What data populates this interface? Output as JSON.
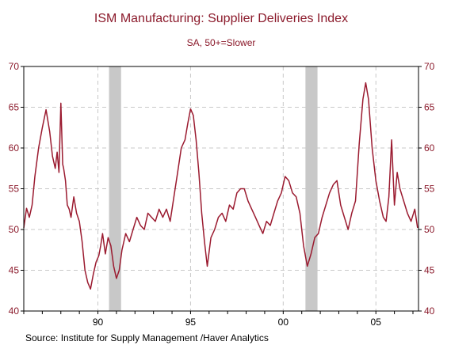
{
  "chart_data": {
    "type": "line",
    "title": "ISM Manufacturing: Supplier Deliveries Index",
    "subtitle": "SA, 50+=Slower",
    "source": "Source:  Institute for Supply Management /Haver Analytics",
    "ylim": [
      40,
      70
    ],
    "y_ticks": [
      40,
      45,
      50,
      55,
      60,
      65,
      70
    ],
    "x_range": [
      1986.0,
      2007.3
    ],
    "x_ticks": [
      {
        "value": 1990,
        "label": "90"
      },
      {
        "value": 1995,
        "label": "95"
      },
      {
        "value": 2000,
        "label": "00"
      },
      {
        "value": 2005,
        "label": "05"
      }
    ],
    "grid": "dashed gridlines",
    "recessions": [
      [
        1990.6,
        1991.25
      ],
      [
        2001.2,
        2001.85
      ]
    ],
    "colors": {
      "line": "#9b1b30",
      "text": "#8b1a2b",
      "recession": "#c8c8c8",
      "grid": "#c8c8c8"
    },
    "series": [
      {
        "x": [
          1986.0,
          1986.15,
          1986.3,
          1986.45,
          1986.6,
          1986.8,
          1987.0,
          1987.2,
          1987.4,
          1987.55,
          1987.7,
          1987.8,
          1987.9,
          1988.0,
          1988.1,
          1988.15,
          1988.25,
          1988.35,
          1988.45,
          1988.55,
          1988.7,
          1988.85,
          1989.0,
          1989.15,
          1989.3,
          1989.45,
          1989.6,
          1989.75,
          1989.9,
          1990.05,
          1990.15,
          1990.25,
          1990.4,
          1990.55,
          1990.7,
          1990.85,
          1991.0,
          1991.15,
          1991.3,
          1991.5,
          1991.7,
          1991.9,
          1992.1,
          1992.3,
          1992.5,
          1992.7,
          1992.9,
          1993.1,
          1993.3,
          1993.5,
          1993.7,
          1993.9,
          1994.1,
          1994.3,
          1994.5,
          1994.7,
          1994.85,
          1995.0,
          1995.15,
          1995.3,
          1995.45,
          1995.6,
          1995.75,
          1995.9,
          1996.1,
          1996.3,
          1996.5,
          1996.7,
          1996.9,
          1997.1,
          1997.3,
          1997.5,
          1997.7,
          1997.9,
          1998.1,
          1998.3,
          1998.5,
          1998.7,
          1998.9,
          1999.1,
          1999.3,
          1999.5,
          1999.7,
          1999.9,
          2000.1,
          2000.3,
          2000.5,
          2000.7,
          2000.9,
          2001.1,
          2001.3,
          2001.5,
          2001.7,
          2001.9,
          2002.1,
          2002.3,
          2002.5,
          2002.7,
          2002.9,
          2003.1,
          2003.3,
          2003.5,
          2003.7,
          2003.9,
          2004.1,
          2004.3,
          2004.45,
          2004.6,
          2004.8,
          2005.0,
          2005.2,
          2005.4,
          2005.55,
          2005.7,
          2005.85,
          2006.0,
          2006.15,
          2006.3,
          2006.5,
          2006.7,
          2006.9,
          2007.1,
          2007.25
        ],
        "y": [
          50.2,
          52.6,
          51.5,
          53.0,
          56.5,
          60.0,
          62.5,
          64.7,
          62.0,
          59.0,
          57.5,
          59.5,
          57.0,
          65.5,
          58.0,
          57.5,
          56.0,
          53.0,
          52.5,
          51.5,
          54.0,
          52.0,
          51.0,
          48.5,
          45.0,
          43.5,
          42.7,
          44.5,
          46.0,
          46.8,
          48.0,
          49.5,
          47.0,
          49.0,
          48.0,
          45.5,
          44.0,
          45.0,
          47.5,
          49.5,
          48.5,
          50.0,
          51.5,
          50.5,
          50.0,
          52.0,
          51.5,
          51.0,
          52.5,
          51.5,
          52.5,
          51.0,
          54.0,
          57.0,
          60.0,
          61.0,
          63.0,
          64.8,
          64.0,
          61.0,
          57.0,
          52.0,
          48.5,
          45.5,
          49.0,
          50.0,
          51.5,
          52.0,
          51.0,
          53.0,
          52.5,
          54.5,
          55.0,
          55.0,
          53.5,
          52.5,
          51.5,
          50.5,
          49.5,
          51.0,
          50.5,
          52.0,
          53.5,
          54.5,
          56.5,
          56.0,
          54.5,
          54.0,
          52.0,
          48.0,
          45.5,
          47.0,
          49.0,
          49.5,
          51.5,
          53.0,
          54.5,
          55.5,
          56.0,
          53.0,
          51.5,
          50.0,
          52.0,
          53.5,
          60.5,
          66.0,
          68.0,
          66.0,
          60.0,
          56.0,
          53.5,
          51.5,
          51.0,
          54.0,
          61.0,
          53.0,
          57.0,
          55.0,
          53.5,
          52.0,
          51.0,
          52.5,
          50.2
        ]
      }
    ]
  }
}
